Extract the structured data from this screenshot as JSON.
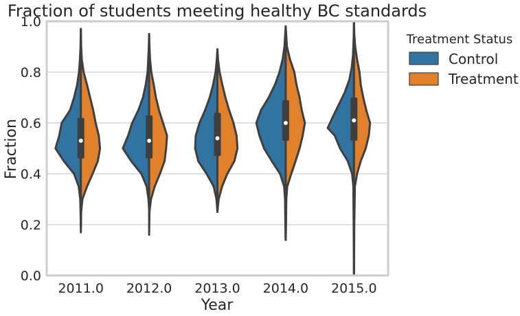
{
  "chart_data": {
    "type": "violin",
    "split": true,
    "title": "Fraction of students meeting healthy BC standards",
    "xlabel": "Year",
    "ylabel": "Fraction",
    "ylim": [
      0,
      1
    ],
    "yticks": [
      0.0,
      0.2,
      0.4,
      0.6,
      0.8,
      1.0
    ],
    "ytick_labels": [
      "0.0",
      "0.2",
      "0.4",
      "0.6",
      "0.8",
      "1.0"
    ],
    "categories": [
      "2011.0",
      "2012.0",
      "2013.0",
      "2014.0",
      "2015.0"
    ],
    "grid": "horizontal",
    "legend": {
      "title": "Treatment Status",
      "placement": "outside-right",
      "entries": [
        "Control",
        "Treatment"
      ]
    },
    "series": [
      {
        "name": "Control",
        "color": "#3274a1",
        "side": "left",
        "distributions": [
          {
            "min": 0.19,
            "max": 0.97,
            "profile": [
              [
                0.19,
                0.0
              ],
              [
                0.25,
                0.01
              ],
              [
                0.3,
                0.02
              ],
              [
                0.35,
                0.07
              ],
              [
                0.4,
                0.22
              ],
              [
                0.45,
                0.55
              ],
              [
                0.5,
                0.82
              ],
              [
                0.55,
                0.7
              ],
              [
                0.6,
                0.62
              ],
              [
                0.65,
                0.35
              ],
              [
                0.7,
                0.22
              ],
              [
                0.75,
                0.12
              ],
              [
                0.8,
                0.06
              ],
              [
                0.85,
                0.03
              ],
              [
                0.9,
                0.01
              ],
              [
                0.97,
                0.0
              ]
            ]
          },
          {
            "min": 0.26,
            "max": 0.95,
            "profile": [
              [
                0.26,
                0.0
              ],
              [
                0.3,
                0.02
              ],
              [
                0.35,
                0.08
              ],
              [
                0.4,
                0.25
              ],
              [
                0.45,
                0.58
              ],
              [
                0.5,
                0.85
              ],
              [
                0.55,
                0.68
              ],
              [
                0.6,
                0.55
              ],
              [
                0.65,
                0.35
              ],
              [
                0.7,
                0.2
              ],
              [
                0.75,
                0.11
              ],
              [
                0.8,
                0.05
              ],
              [
                0.85,
                0.03
              ],
              [
                0.9,
                0.01
              ],
              [
                0.95,
                0.0
              ]
            ]
          },
          {
            "min": 0.25,
            "max": 0.89,
            "profile": [
              [
                0.25,
                0.0
              ],
              [
                0.3,
                0.03
              ],
              [
                0.35,
                0.12
              ],
              [
                0.4,
                0.35
              ],
              [
                0.45,
                0.62
              ],
              [
                0.5,
                0.72
              ],
              [
                0.55,
                0.7
              ],
              [
                0.6,
                0.58
              ],
              [
                0.65,
                0.4
              ],
              [
                0.7,
                0.25
              ],
              [
                0.75,
                0.14
              ],
              [
                0.8,
                0.06
              ],
              [
                0.85,
                0.02
              ],
              [
                0.89,
                0.0
              ]
            ]
          },
          {
            "min": 0.14,
            "max": 0.98,
            "profile": [
              [
                0.14,
                0.0
              ],
              [
                0.2,
                0.01
              ],
              [
                0.3,
                0.02
              ],
              [
                0.35,
                0.05
              ],
              [
                0.4,
                0.18
              ],
              [
                0.45,
                0.45
              ],
              [
                0.5,
                0.7
              ],
              [
                0.55,
                0.85
              ],
              [
                0.6,
                0.95
              ],
              [
                0.65,
                0.8
              ],
              [
                0.7,
                0.55
              ],
              [
                0.75,
                0.35
              ],
              [
                0.8,
                0.2
              ],
              [
                0.85,
                0.1
              ],
              [
                0.9,
                0.04
              ],
              [
                0.98,
                0.0
              ]
            ]
          },
          {
            "min": 0.0,
            "max": 1.0,
            "profile": [
              [
                0.0,
                0.0
              ],
              [
                0.2,
                0.01
              ],
              [
                0.35,
                0.02
              ],
              [
                0.4,
                0.06
              ],
              [
                0.45,
                0.2
              ],
              [
                0.5,
                0.45
              ],
              [
                0.55,
                0.62
              ],
              [
                0.58,
                0.85
              ],
              [
                0.62,
                0.7
              ],
              [
                0.67,
                0.5
              ],
              [
                0.72,
                0.3
              ],
              [
                0.77,
                0.15
              ],
              [
                0.82,
                0.07
              ],
              [
                0.87,
                0.03
              ],
              [
                0.93,
                0.01
              ],
              [
                1.0,
                0.0
              ]
            ]
          }
        ]
      },
      {
        "name": "Treatment",
        "color": "#e1812c",
        "side": "right",
        "distributions": [
          {
            "min": 0.17,
            "max": 0.97,
            "profile": [
              [
                0.17,
                0.0
              ],
              [
                0.25,
                0.01
              ],
              [
                0.3,
                0.05
              ],
              [
                0.35,
                0.2
              ],
              [
                0.4,
                0.38
              ],
              [
                0.45,
                0.55
              ],
              [
                0.5,
                0.62
              ],
              [
                0.55,
                0.58
              ],
              [
                0.6,
                0.48
              ],
              [
                0.65,
                0.4
              ],
              [
                0.7,
                0.3
              ],
              [
                0.75,
                0.2
              ],
              [
                0.8,
                0.09
              ],
              [
                0.85,
                0.03
              ],
              [
                0.9,
                0.01
              ],
              [
                0.97,
                0.0
              ]
            ]
          },
          {
            "min": 0.16,
            "max": 0.95,
            "profile": [
              [
                0.16,
                0.0
              ],
              [
                0.25,
                0.01
              ],
              [
                0.3,
                0.06
              ],
              [
                0.35,
                0.18
              ],
              [
                0.4,
                0.35
              ],
              [
                0.45,
                0.5
              ],
              [
                0.5,
                0.55
              ],
              [
                0.55,
                0.58
              ],
              [
                0.6,
                0.45
              ],
              [
                0.65,
                0.32
              ],
              [
                0.7,
                0.22
              ],
              [
                0.75,
                0.15
              ],
              [
                0.8,
                0.07
              ],
              [
                0.85,
                0.03
              ],
              [
                0.9,
                0.01
              ],
              [
                0.95,
                0.0
              ]
            ]
          },
          {
            "min": 0.25,
            "max": 0.89,
            "profile": [
              [
                0.25,
                0.0
              ],
              [
                0.3,
                0.04
              ],
              [
                0.35,
                0.15
              ],
              [
                0.4,
                0.32
              ],
              [
                0.45,
                0.55
              ],
              [
                0.5,
                0.65
              ],
              [
                0.55,
                0.62
              ],
              [
                0.6,
                0.52
              ],
              [
                0.65,
                0.38
              ],
              [
                0.7,
                0.26
              ],
              [
                0.75,
                0.16
              ],
              [
                0.8,
                0.07
              ],
              [
                0.85,
                0.02
              ],
              [
                0.89,
                0.0
              ]
            ]
          },
          {
            "min": 0.14,
            "max": 0.98,
            "profile": [
              [
                0.14,
                0.0
              ],
              [
                0.2,
                0.01
              ],
              [
                0.3,
                0.02
              ],
              [
                0.35,
                0.05
              ],
              [
                0.4,
                0.18
              ],
              [
                0.45,
                0.32
              ],
              [
                0.5,
                0.45
              ],
              [
                0.55,
                0.55
              ],
              [
                0.6,
                0.62
              ],
              [
                0.65,
                0.52
              ],
              [
                0.7,
                0.45
              ],
              [
                0.75,
                0.35
              ],
              [
                0.8,
                0.28
              ],
              [
                0.85,
                0.14
              ],
              [
                0.9,
                0.04
              ],
              [
                0.98,
                0.0
              ]
            ]
          },
          {
            "min": 0.0,
            "max": 1.0,
            "profile": [
              [
                0.0,
                0.0
              ],
              [
                0.2,
                0.01
              ],
              [
                0.35,
                0.03
              ],
              [
                0.4,
                0.1
              ],
              [
                0.45,
                0.22
              ],
              [
                0.5,
                0.38
              ],
              [
                0.55,
                0.48
              ],
              [
                0.6,
                0.52
              ],
              [
                0.65,
                0.4
              ],
              [
                0.7,
                0.3
              ],
              [
                0.75,
                0.22
              ],
              [
                0.8,
                0.18
              ],
              [
                0.85,
                0.1
              ],
              [
                0.9,
                0.04
              ],
              [
                0.95,
                0.01
              ],
              [
                1.0,
                0.0
              ]
            ]
          }
        ]
      }
    ],
    "box": {
      "color": "#3f3f3f",
      "median_color": "#ffffff",
      "stats": [
        {
          "q1": 0.46,
          "median": 0.53,
          "q3": 0.62,
          "whisker_low": 0.3,
          "whisker_high": 0.79
        },
        {
          "q1": 0.46,
          "median": 0.53,
          "q3": 0.63,
          "whisker_low": 0.3,
          "whisker_high": 0.8
        },
        {
          "q1": 0.47,
          "median": 0.54,
          "q3": 0.64,
          "whisker_low": 0.31,
          "whisker_high": 0.8
        },
        {
          "q1": 0.53,
          "median": 0.6,
          "q3": 0.69,
          "whisker_low": 0.37,
          "whisker_high": 0.85
        },
        {
          "q1": 0.53,
          "median": 0.61,
          "q3": 0.7,
          "whisker_low": 0.41,
          "whisker_high": 0.85
        }
      ]
    }
  }
}
